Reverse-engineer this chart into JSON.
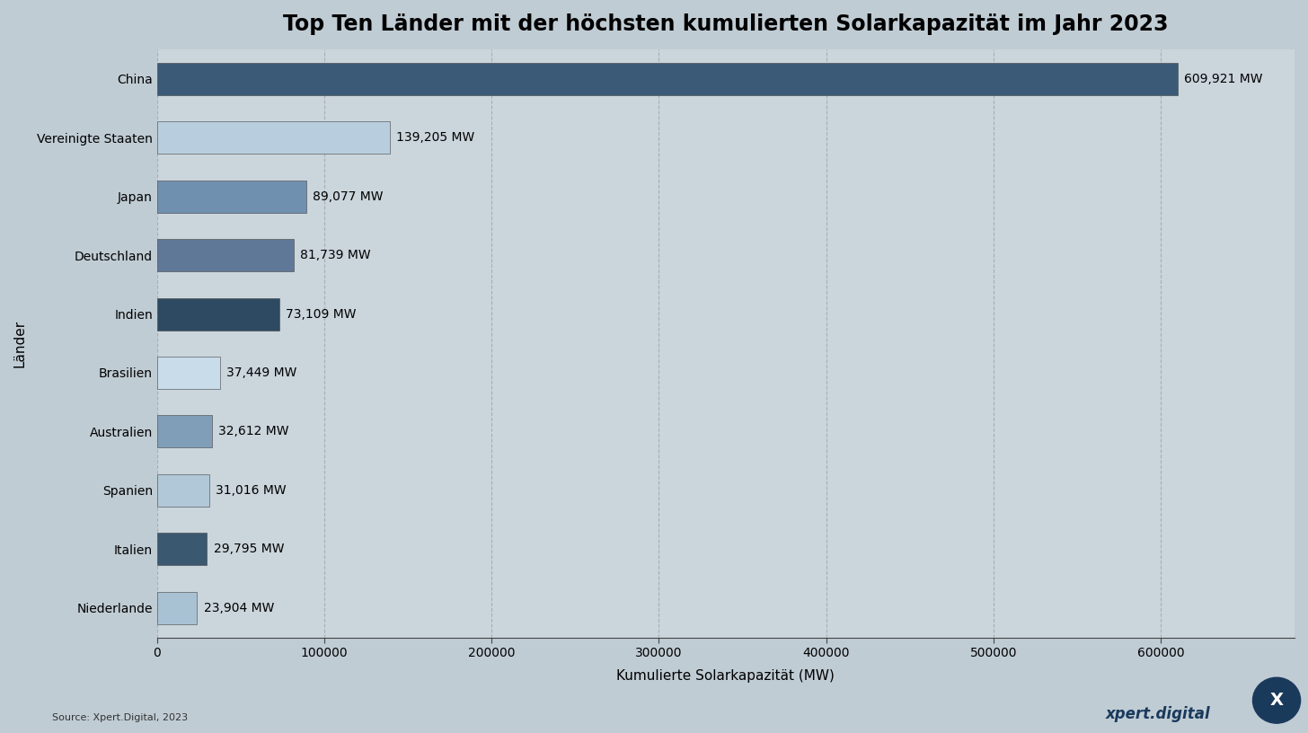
{
  "title": "Top Ten Länder mit der höchsten kumulierten Solarkapazität im Jahr 2023",
  "xlabel": "Kumulierte Solarkapazität (MW)",
  "ylabel": "Länder",
  "source": "Source: Xpert.Digital, 2023",
  "branding": "xpert.digital",
  "countries": [
    "China",
    "Vereinigte Staaten",
    "Japan",
    "Deutschland",
    "Indien",
    "Brasilien",
    "Australien",
    "Spanien",
    "Italien",
    "Niederlande"
  ],
  "values": [
    609921,
    139205,
    89077,
    81739,
    73109,
    37449,
    32612,
    31016,
    29795,
    23904
  ],
  "labels": [
    "609,921 MW",
    "139,205 MW",
    "89,077 MW",
    "81,739 MW",
    "73,109 MW",
    "37,449 MW",
    "32,612 MW",
    "31,016 MW",
    "29,795 MW",
    "23,904 MW"
  ],
  "bar_colors": [
    "#3a5a78",
    "#b8cede",
    "#7090b0",
    "#607898",
    "#2e4a62",
    "#c8dcea",
    "#809eb8",
    "#b0c8d8",
    "#3a5870",
    "#a8c2d4"
  ],
  "background_top_color": "#b8c8d8",
  "background_bottom_color": "#c8d0c8",
  "plot_bg_color": "#c8d4dc",
  "plot_bg_alpha": 0.0,
  "xlim": [
    0,
    680000
  ],
  "xticks": [
    0,
    100000,
    200000,
    300000,
    400000,
    500000,
    600000
  ],
  "title_fontsize": 17,
  "axis_label_fontsize": 11,
  "tick_fontsize": 10,
  "label_fontsize": 10,
  "grid_color": "#888888",
  "grid_style": "--",
  "grid_alpha": 0.5,
  "bar_height": 0.55
}
